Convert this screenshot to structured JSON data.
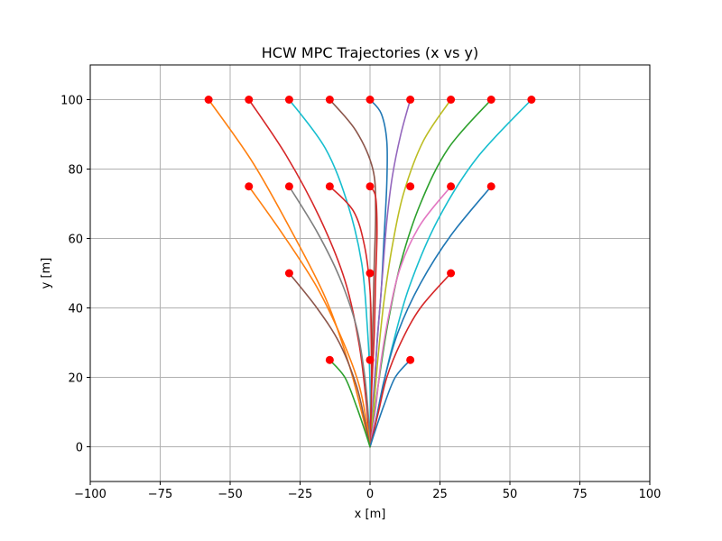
{
  "chart_data": {
    "type": "line",
    "title": "HCW MPC Trajectories (x vs y)",
    "xlabel": "x [m]",
    "ylabel": "y [m]",
    "xlim": [
      -100,
      100
    ],
    "ylim": [
      -10,
      110
    ],
    "xticks": [
      -100,
      -75,
      -50,
      -25,
      0,
      25,
      50,
      75,
      100
    ],
    "yticks": [
      0,
      20,
      40,
      60,
      80,
      100
    ],
    "xtick_labels": [
      "−100",
      "−75",
      "−50",
      "−25",
      "0",
      "25",
      "50",
      "75",
      "100"
    ],
    "ytick_labels": [
      "0",
      "20",
      "40",
      "60",
      "80",
      "100"
    ],
    "grid": true,
    "marker_color": "#ff0000",
    "series": [
      {
        "color": "#1f77b4",
        "points": [
          [
            0,
            100
          ],
          [
            4,
            96
          ],
          [
            6,
            88
          ],
          [
            6,
            76
          ],
          [
            5,
            60
          ],
          [
            4,
            45
          ],
          [
            2.5,
            30
          ],
          [
            1.5,
            15
          ],
          [
            0,
            0
          ]
        ]
      },
      {
        "color": "#9467bd",
        "points": [
          [
            14.4,
            100
          ],
          [
            11,
            90
          ],
          [
            8,
            78
          ],
          [
            6,
            65
          ],
          [
            4.5,
            50
          ],
          [
            3,
            35
          ],
          [
            1.5,
            18
          ],
          [
            0,
            0
          ]
        ]
      },
      {
        "color": "#bcbd22",
        "points": [
          [
            28.9,
            100
          ],
          [
            19,
            88
          ],
          [
            12,
            73
          ],
          [
            8,
            58
          ],
          [
            5,
            42
          ],
          [
            3,
            27
          ],
          [
            1.5,
            13
          ],
          [
            0,
            0
          ]
        ]
      },
      {
        "color": "#2ca02c",
        "points": [
          [
            43.3,
            100
          ],
          [
            28,
            86
          ],
          [
            18,
            70
          ],
          [
            11,
            53
          ],
          [
            6.5,
            36
          ],
          [
            3.5,
            21
          ],
          [
            1.5,
            9
          ],
          [
            0,
            0
          ]
        ]
      },
      {
        "color": "#17becf",
        "points": [
          [
            57.7,
            100
          ],
          [
            38,
            83
          ],
          [
            24,
            65
          ],
          [
            14,
            46
          ],
          [
            8,
            29
          ],
          [
            4,
            15
          ],
          [
            1.5,
            5
          ],
          [
            0,
            0
          ]
        ]
      },
      {
        "color": "#8c564b",
        "points": [
          [
            -14.4,
            100
          ],
          [
            -5,
            91
          ],
          [
            1,
            80
          ],
          [
            2,
            68
          ],
          [
            1.5,
            52
          ],
          [
            1,
            35
          ],
          [
            0.5,
            18
          ],
          [
            0,
            0
          ]
        ]
      },
      {
        "color": "#17becf",
        "points": [
          [
            -28.9,
            100
          ],
          [
            -16,
            86
          ],
          [
            -8,
            70
          ],
          [
            -3,
            53
          ],
          [
            -1,
            35
          ],
          [
            0,
            18
          ],
          [
            0,
            0
          ]
        ]
      },
      {
        "color": "#d62728",
        "points": [
          [
            -43.3,
            100
          ],
          [
            -30,
            84
          ],
          [
            -18,
            66
          ],
          [
            -9,
            48
          ],
          [
            -4,
            30
          ],
          [
            -1.5,
            14
          ],
          [
            0,
            0
          ]
        ]
      },
      {
        "color": "#ff7f0e",
        "points": [
          [
            -57.7,
            100
          ],
          [
            -42,
            82
          ],
          [
            -28,
            62
          ],
          [
            -16,
            43
          ],
          [
            -8,
            25
          ],
          [
            -3,
            10
          ],
          [
            0,
            0
          ]
        ]
      },
      {
        "color": "#d62728",
        "points": [
          [
            0,
            75
          ],
          [
            2,
            72
          ],
          [
            2.5,
            62
          ],
          [
            2,
            48
          ],
          [
            1.5,
            32
          ],
          [
            0.5,
            15
          ],
          [
            0,
            0
          ]
        ]
      },
      {
        "color": "#e377c2",
        "points": [
          [
            28.9,
            75
          ],
          [
            18,
            64
          ],
          [
            11,
            52
          ],
          [
            7,
            39
          ],
          [
            4,
            25
          ],
          [
            2,
            11
          ],
          [
            0,
            0
          ]
        ]
      },
      {
        "color": "#1f77b4",
        "points": [
          [
            43.3,
            75
          ],
          [
            29,
            61
          ],
          [
            18,
            47
          ],
          [
            10,
            33
          ],
          [
            5,
            19
          ],
          [
            2,
            7
          ],
          [
            0,
            0
          ]
        ]
      },
      {
        "color": "#d62728",
        "points": [
          [
            -14.4,
            75
          ],
          [
            -6,
            68
          ],
          [
            -2,
            58
          ],
          [
            0,
            45
          ],
          [
            0.5,
            30
          ],
          [
            0.5,
            15
          ],
          [
            0,
            0
          ]
        ]
      },
      {
        "color": "#7f7f7f",
        "points": [
          [
            -28.9,
            75
          ],
          [
            -19,
            62
          ],
          [
            -11,
            49
          ],
          [
            -5,
            35
          ],
          [
            -2,
            21
          ],
          [
            -0.5,
            8
          ],
          [
            0,
            0
          ]
        ]
      },
      {
        "color": "#ff7f0e",
        "points": [
          [
            -43.3,
            75
          ],
          [
            -31,
            61
          ],
          [
            -19,
            46
          ],
          [
            -10,
            31
          ],
          [
            -4,
            18
          ],
          [
            -1,
            6
          ],
          [
            0,
            0
          ]
        ]
      },
      {
        "color": "#d62728",
        "points": [
          [
            28.9,
            50
          ],
          [
            18,
            40
          ],
          [
            11,
            30
          ],
          [
            6,
            20
          ],
          [
            3,
            10
          ],
          [
            0,
            0
          ]
        ]
      },
      {
        "color": "#8c564b",
        "points": [
          [
            -28.9,
            50
          ],
          [
            -19,
            40
          ],
          [
            -11,
            30
          ],
          [
            -5,
            18
          ],
          [
            -2,
            8
          ],
          [
            0,
            0
          ]
        ]
      },
      {
        "color": "#1f77b4",
        "points": [
          [
            14.4,
            25
          ],
          [
            9,
            20
          ],
          [
            5,
            12
          ],
          [
            2,
            5
          ],
          [
            0,
            0
          ]
        ]
      },
      {
        "color": "#2ca02c",
        "points": [
          [
            -14.4,
            25
          ],
          [
            -9,
            20
          ],
          [
            -5,
            12
          ],
          [
            -2,
            5
          ],
          [
            0,
            0
          ]
        ]
      }
    ],
    "markers": [
      [
        -57.7,
        100
      ],
      [
        -43.3,
        100
      ],
      [
        -28.9,
        100
      ],
      [
        -14.4,
        100
      ],
      [
        0,
        100
      ],
      [
        14.4,
        100
      ],
      [
        28.9,
        100
      ],
      [
        43.3,
        100
      ],
      [
        57.7,
        100
      ],
      [
        -43.3,
        75
      ],
      [
        -28.9,
        75
      ],
      [
        -14.4,
        75
      ],
      [
        0,
        75
      ],
      [
        14.4,
        75
      ],
      [
        28.9,
        75
      ],
      [
        43.3,
        75
      ],
      [
        -28.9,
        50
      ],
      [
        0,
        50
      ],
      [
        28.9,
        50
      ],
      [
        -14.4,
        25
      ],
      [
        0,
        25
      ],
      [
        14.4,
        25
      ]
    ]
  }
}
